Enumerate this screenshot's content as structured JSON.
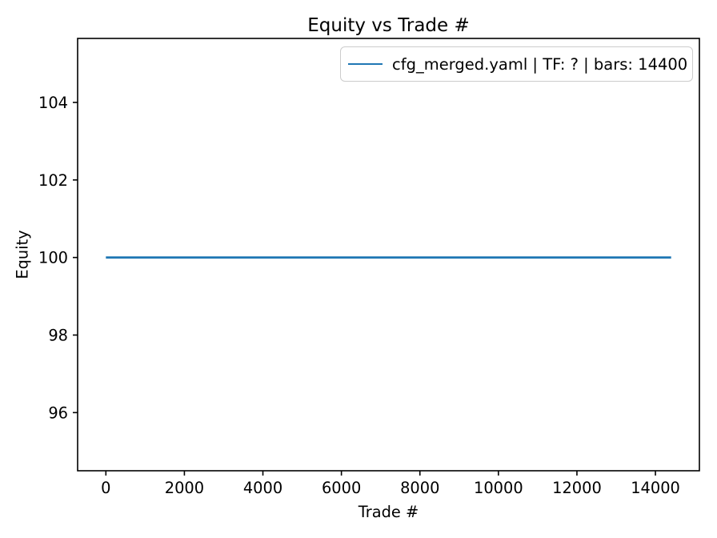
{
  "figure": {
    "background": "#ffffff",
    "spine_color": "#000000",
    "legend_border_color": "#cccccc"
  },
  "chart_data": {
    "type": "line",
    "title": "Equity vs Trade #",
    "xlabel": "Trade #",
    "ylabel": "Equity",
    "xlim": [
      -720,
      15120
    ],
    "ylim": [
      94.5,
      105.65
    ],
    "x_ticks": [
      0,
      2000,
      4000,
      6000,
      8000,
      10000,
      12000,
      14000
    ],
    "y_ticks": [
      96,
      98,
      100,
      102,
      104
    ],
    "grid": false,
    "legend_position": "upper right",
    "series": [
      {
        "name": "cfg_merged.yaml | TF: ? | bars: 14400",
        "color": "#1f77b4",
        "x": [
          0,
          14400
        ],
        "y": [
          100,
          100
        ]
      }
    ]
  }
}
